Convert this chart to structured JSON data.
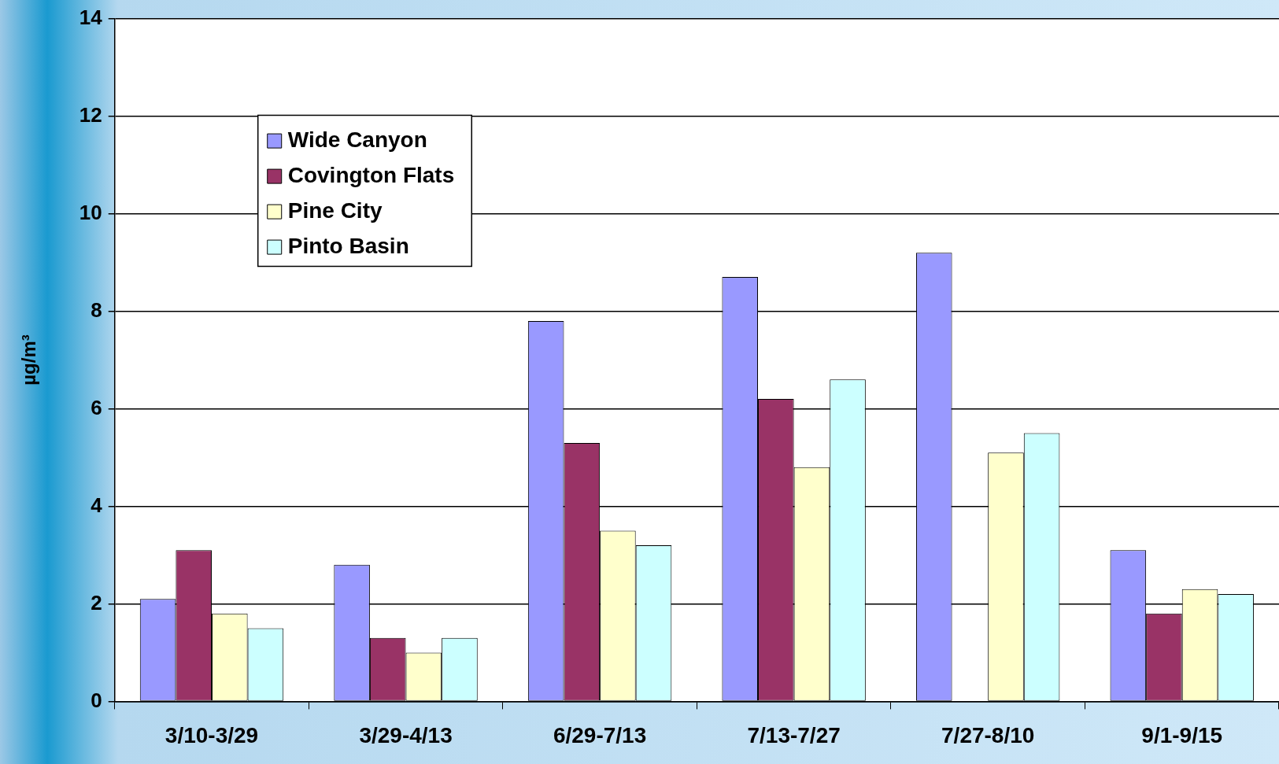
{
  "chart_data": {
    "type": "bar",
    "ylabel": "µg/m³",
    "categories": [
      "3/10-3/29",
      "3/29-4/13",
      "6/29-7/13",
      "7/13-7/27",
      "7/27-8/10",
      "9/1-9/15"
    ],
    "series": [
      {
        "name": "Wide Canyon",
        "color": "#9999ff",
        "values": [
          2.1,
          2.8,
          7.8,
          8.7,
          9.2,
          3.1
        ]
      },
      {
        "name": "Covington Flats",
        "color": "#993366",
        "values": [
          3.1,
          1.3,
          5.3,
          6.2,
          null,
          1.8
        ]
      },
      {
        "name": "Pine City",
        "color": "#ffffcc",
        "values": [
          1.8,
          1.0,
          3.5,
          4.8,
          5.1,
          2.3
        ]
      },
      {
        "name": "Pinto Basin",
        "color": "#ccffff",
        "values": [
          1.5,
          1.3,
          3.2,
          6.6,
          5.5,
          2.2
        ]
      }
    ],
    "ylim": [
      0,
      14
    ],
    "yticks": [
      0,
      2,
      4,
      6,
      8,
      10,
      12,
      14
    ],
    "grid": "y",
    "legend": "top left"
  }
}
